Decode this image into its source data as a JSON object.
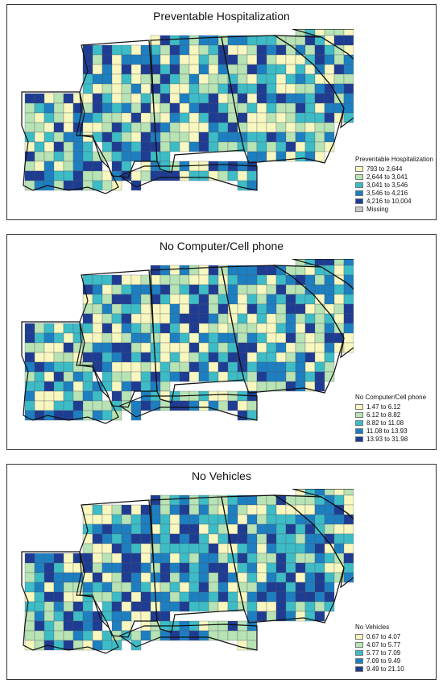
{
  "panels": [
    {
      "title": "Preventable Hospitalization",
      "legend_title": "Preventable Hospitalization",
      "legend": [
        {
          "label": "793 to 2,644",
          "color": "#f7f7bf"
        },
        {
          "label": "2,644 to 3,041",
          "color": "#b7e3b5"
        },
        {
          "label": "3,041 to 3,546",
          "color": "#3dbcc6"
        },
        {
          "label": "3,546 to 4,216",
          "color": "#1d7fc0"
        },
        {
          "label": "4,216 to 10,004",
          "color": "#1e3c92"
        },
        {
          "label": "Missing",
          "color": "#c8c8c8"
        }
      ]
    },
    {
      "title": "No Computer/Cell phone",
      "legend_title": "No Computer/Cell phone",
      "legend": [
        {
          "label": "1.47 to 6.12",
          "color": "#f7f7bf"
        },
        {
          "label": "6.12 to 8.82",
          "color": "#b7e3b5"
        },
        {
          "label": "8.82 to 11.08",
          "color": "#3dbcc6"
        },
        {
          "label": "11.08 to 13.93",
          "color": "#1d7fc0"
        },
        {
          "label": "13.93 to 31.98",
          "color": "#1e3c92"
        }
      ]
    },
    {
      "title": "No Vehicles",
      "legend_title": "No Vehicles",
      "legend": [
        {
          "label": "0.67 to 4.07",
          "color": "#f7f7bf"
        },
        {
          "label": "4.07 to 5.77",
          "color": "#b7e3b5"
        },
        {
          "label": "5.77 to 7.09",
          "color": "#3dbcc6"
        },
        {
          "label": "7.09 to 9.49",
          "color": "#1d7fc0"
        },
        {
          "label": "9.49 to 21.10",
          "color": "#1e3c92"
        }
      ]
    }
  ]
}
